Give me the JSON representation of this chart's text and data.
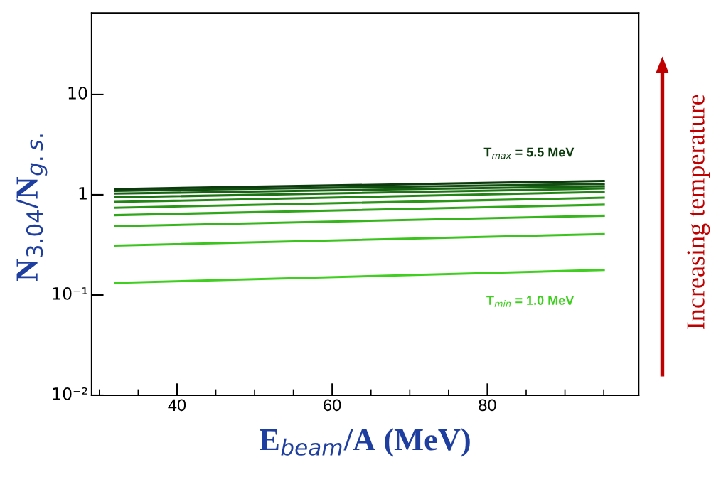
{
  "chart_data": {
    "type": "line",
    "xlabel": "E$_{beam}$/A (MeV)",
    "ylabel": "N$_{3.04}$/N$_{g.s.}$",
    "log": "y",
    "grid": false,
    "legend": false,
    "marker": "none",
    "line_style": "solid",
    "xlim": [
      29,
      99.5
    ],
    "xticks": [
      40,
      60,
      80
    ],
    "ylim": [
      0.01,
      65
    ],
    "yticks": [
      {
        "value": 0.01,
        "label": "10⁻²"
      },
      {
        "value": 0.1,
        "label": "10⁻¹"
      },
      1,
      10
    ],
    "x": [
      32,
      95
    ],
    "series": [
      {
        "name": "T$_{min}$ = 1.0 MeV",
        "color": "#3fcf1f",
        "values": [
          0.132,
          0.178
        ]
      },
      {
        "color": "#3cc41e",
        "values": [
          0.311,
          0.405
        ]
      },
      {
        "color": "#36b61c",
        "values": [
          0.485,
          0.618
        ]
      },
      {
        "color": "#30a61a",
        "values": [
          0.626,
          0.796
        ]
      },
      {
        "color": "#2a9618",
        "values": [
          0.742,
          0.934
        ]
      },
      {
        "color": "#238516",
        "values": [
          0.848,
          1.066
        ]
      },
      {
        "color": "#1d7414",
        "values": [
          0.943,
          1.155
        ]
      },
      {
        "color": "#176212",
        "values": [
          1.027,
          1.217
        ]
      },
      {
        "color": "#114f10",
        "values": [
          1.095,
          1.286
        ]
      },
      {
        "name": "T$_{max}$ = 5.5 MeV",
        "color": "#0b3a0c",
        "values": [
          1.14,
          1.374
        ]
      }
    ],
    "annotations": [
      "Increasing temperature"
    ]
  }
}
